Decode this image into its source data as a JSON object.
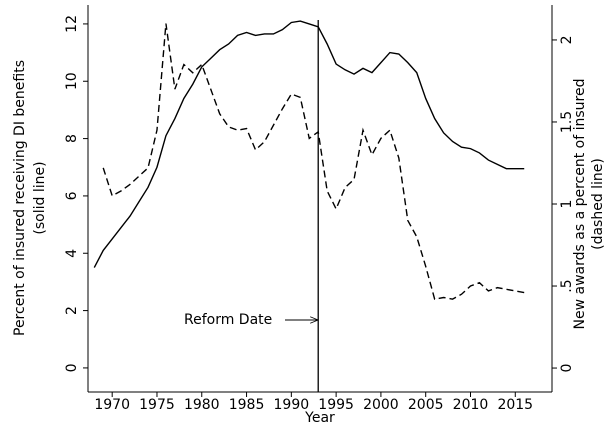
{
  "chart_data": {
    "type": "line",
    "x_label": "Year",
    "y_label": [
      "Percent of insured receiving DI benefits",
      "(solid line)"
    ],
    "y2_label": [
      "New awards as a percent of insured",
      "(dashed line)"
    ],
    "x": [
      1968,
      1969,
      1970,
      1971,
      1972,
      1973,
      1974,
      1975,
      1976,
      1977,
      1978,
      1979,
      1980,
      1981,
      1982,
      1983,
      1984,
      1985,
      1986,
      1987,
      1988,
      1989,
      1990,
      1991,
      1992,
      1993,
      1994,
      1995,
      1996,
      1997,
      1998,
      1999,
      2000,
      2001,
      2002,
      2003,
      2004,
      2005,
      2006,
      2007,
      2008,
      2009,
      2010,
      2011,
      2012,
      2013,
      2014,
      2015,
      2016
    ],
    "series": [
      {
        "color": "#000000",
        "dash": false,
        "values": [
          3.5,
          4.1,
          4.5,
          4.9,
          5.3,
          5.8,
          6.3,
          7.0,
          8.1,
          8.7,
          9.4,
          9.9,
          10.5,
          10.8,
          11.1,
          11.3,
          11.6,
          11.7,
          11.6,
          11.65,
          11.65,
          11.8,
          12.05,
          12.1,
          12.0,
          11.9,
          11.3,
          10.6,
          10.4,
          10.25,
          10.45,
          10.3,
          10.65,
          11.0,
          10.95,
          10.65,
          10.3,
          9.4,
          8.7,
          8.2,
          7.9,
          7.7,
          7.65,
          7.5,
          7.25,
          7.1,
          6.95,
          6.95,
          6.95
        ]
      },
      {
        "color": "#000000",
        "dash": true,
        "axis": "y2",
        "values": [
          null,
          1.22,
          1.05,
          1.08,
          1.12,
          1.17,
          1.22,
          1.45,
          2.1,
          1.7,
          1.85,
          1.8,
          1.85,
          1.7,
          1.55,
          1.47,
          1.45,
          1.46,
          1.33,
          1.38,
          1.48,
          1.58,
          1.67,
          1.65,
          1.4,
          1.44,
          1.08,
          0.97,
          1.1,
          1.15,
          1.45,
          1.3,
          1.4,
          1.45,
          1.28,
          0.9,
          0.8,
          0.62,
          0.42,
          0.43,
          0.42,
          0.45,
          0.5,
          0.52,
          0.47,
          0.49,
          0.48,
          0.47,
          0.46
        ]
      }
    ],
    "reform": {
      "year": 1993,
      "label": "Reform Date"
    },
    "xlim": [
      1967.3,
      2019.1
    ],
    "xticks": [
      1970,
      1975,
      1980,
      1985,
      1990,
      1995,
      2000,
      2005,
      2010,
      2015
    ],
    "ylim": [
      -0.84,
      12.66
    ],
    "yticks": [
      0,
      2,
      4,
      6,
      8,
      10,
      12
    ],
    "y2lim": [
      -0.146,
      2.213
    ],
    "y2ticks": [
      0,
      {
        "value": 0.5,
        "label": ".5"
      },
      1,
      1.5,
      2
    ]
  }
}
